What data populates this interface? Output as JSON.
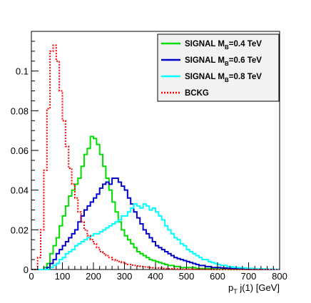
{
  "chart_data": {
    "type": "line",
    "title": "",
    "xlabel": "p_T j(1) [GeV]",
    "xlabel_parts": {
      "main": "p",
      "sub": "T",
      "rest": " j(1) [GeV]"
    },
    "ylabel": "",
    "xlim": [
      0,
      800
    ],
    "ylim": [
      0,
      0.12
    ],
    "bin_width": 10,
    "x_ticks": [
      0,
      100,
      200,
      300,
      400,
      500,
      600,
      700,
      800
    ],
    "x_tick_labels": [
      "0",
      "100",
      "200",
      "300",
      "400",
      "500",
      "600",
      "700",
      "800"
    ],
    "y_ticks": [
      0,
      0.02,
      0.04,
      0.06,
      0.08,
      0.1
    ],
    "y_tick_labels": [
      "0",
      "0.02",
      "0.04",
      "0.06",
      "0.08",
      "0.1"
    ],
    "grid": false,
    "legend_position": "top-right",
    "series": [
      {
        "name": "SIGNAL M_B=0.4 TeV",
        "legend": {
          "main": "SIGNAL M",
          "sub": "B",
          "rest": "=0.4 TeV"
        },
        "color": "#00dd00",
        "dashed": false,
        "values": [
          0,
          0,
          0,
          0,
          0.001,
          0.003,
          0.008,
          0.012,
          0.016,
          0.022,
          0.027,
          0.032,
          0.037,
          0.04,
          0.043,
          0.046,
          0.052,
          0.058,
          0.061,
          0.067,
          0.066,
          0.063,
          0.058,
          0.052,
          0.046,
          0.04,
          0.034,
          0.029,
          0.024,
          0.02,
          0.017,
          0.015,
          0.013,
          0.011,
          0.009,
          0.008,
          0.007,
          0.006,
          0.005,
          0.0045,
          0.004,
          0.0035,
          0.003,
          0.0025,
          0.002,
          0.002,
          0.0015,
          0.0015,
          0.001,
          0.001,
          0.001,
          0.001,
          0.001,
          0.0005,
          0.0005,
          0.0005,
          0.0005,
          0.0005,
          0.0003,
          0.0003,
          0.0002,
          0.0002,
          0.0002,
          0.0002,
          0.0001,
          0.0001,
          0.0001,
          0.0001,
          0.0001,
          0.0001,
          0,
          0,
          0,
          0,
          0,
          0,
          0,
          0,
          0,
          0
        ]
      },
      {
        "name": "SIGNAL M_B=0.6 TeV",
        "legend": {
          "main": "SIGNAL M",
          "sub": "B",
          "rest": "=0.6 TeV"
        },
        "color": "#0000cc",
        "dashed": false,
        "values": [
          0,
          0,
          0,
          0,
          0,
          0.001,
          0.003,
          0.005,
          0.008,
          0.01,
          0.012,
          0.014,
          0.016,
          0.018,
          0.02,
          0.024,
          0.027,
          0.03,
          0.032,
          0.034,
          0.036,
          0.038,
          0.041,
          0.043,
          0.044,
          0.043,
          0.046,
          0.046,
          0.044,
          0.042,
          0.04,
          0.036,
          0.033,
          0.029,
          0.026,
          0.023,
          0.02,
          0.018,
          0.016,
          0.014,
          0.012,
          0.011,
          0.01,
          0.009,
          0.008,
          0.007,
          0.006,
          0.0055,
          0.005,
          0.0045,
          0.004,
          0.0035,
          0.003,
          0.0025,
          0.002,
          0.002,
          0.0015,
          0.0015,
          0.001,
          0.001,
          0.001,
          0.0008,
          0.0007,
          0.0006,
          0.0005,
          0.0004,
          0.0004,
          0.0003,
          0.0003,
          0.0002,
          0.0002,
          0.0002,
          0.0001,
          0.0001,
          0.0001,
          0.0001,
          0,
          0,
          0,
          0
        ]
      },
      {
        "name": "SIGNAL M_B=0.8 TeV",
        "legend": {
          "main": "SIGNAL M",
          "sub": "B",
          "rest": "=0.8 TeV"
        },
        "color": "#00ffff",
        "dashed": false,
        "values": [
          0,
          0,
          0,
          0,
          0,
          0,
          0.001,
          0.002,
          0.003,
          0.005,
          0.006,
          0.008,
          0.009,
          0.01,
          0.012,
          0.013,
          0.014,
          0.015,
          0.016,
          0.017,
          0.018,
          0.018,
          0.019,
          0.02,
          0.021,
          0.022,
          0.023,
          0.024,
          0.025,
          0.027,
          0.027,
          0.029,
          0.031,
          0.033,
          0.032,
          0.031,
          0.033,
          0.032,
          0.03,
          0.031,
          0.029,
          0.027,
          0.025,
          0.022,
          0.02,
          0.018,
          0.016,
          0.015,
          0.013,
          0.012,
          0.01,
          0.009,
          0.008,
          0.007,
          0.006,
          0.005,
          0.005,
          0.004,
          0.0035,
          0.003,
          0.0025,
          0.002,
          0.002,
          0.0015,
          0.0013,
          0.0011,
          0.001,
          0.0009,
          0.0008,
          0.0007,
          0.0006,
          0.0005,
          0.0004,
          0.0004,
          0.0003,
          0.0003,
          0.0002,
          0.0002,
          0.0001,
          0.0001
        ]
      },
      {
        "name": "BCKG",
        "legend": {
          "main": "BCKG",
          "sub": "",
          "rest": ""
        },
        "color": "#ff0000",
        "dashed": true,
        "values": [
          0,
          0,
          0.006,
          0.02,
          0.05,
          0.081,
          0.11,
          0.113,
          0.105,
          0.09,
          0.075,
          0.062,
          0.051,
          0.043,
          0.036,
          0.029,
          0.024,
          0.02,
          0.017,
          0.015,
          0.013,
          0.011,
          0.009,
          0.008,
          0.007,
          0.006,
          0.005,
          0.0045,
          0.004,
          0.0035,
          0.003,
          0.0025,
          0.0022,
          0.002,
          0.0018,
          0.0015,
          0.0013,
          0.0012,
          0.001,
          0.0009,
          0.0008,
          0.0007,
          0.0006,
          0.0005,
          0.0004,
          0.0004,
          0.0003,
          0.0003,
          0.0002,
          0.0002,
          0.0002,
          0.0002,
          0.0001,
          0.0001,
          0.0001,
          0.0001,
          0.0001,
          0.0001,
          0,
          0,
          0,
          0,
          0,
          0,
          0,
          0,
          0,
          0,
          0,
          0,
          0,
          0,
          0,
          0,
          0,
          0,
          0,
          0,
          0,
          0
        ]
      }
    ]
  }
}
